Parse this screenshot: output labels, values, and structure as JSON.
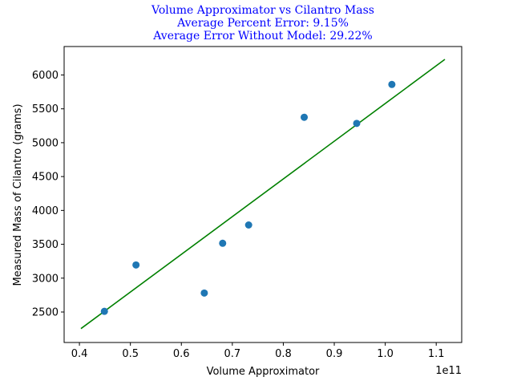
{
  "chart_data": {
    "type": "scatter",
    "title_lines": [
      "Volume Approximator vs Cilantro Mass",
      "Average Percent Error:  9.15%",
      "Average Error Without Model:  29.22%"
    ],
    "xlabel": "Volume Approximator",
    "ylabel": "Measured Mass of Cilantro (grams)",
    "x_offset_label": "1e11",
    "xlim": [
      0.37,
      1.15
    ],
    "ylim": [
      2050,
      6420
    ],
    "x_ticks": [
      0.4,
      0.5,
      0.6,
      0.7,
      0.8,
      0.9,
      1.0,
      1.1
    ],
    "x_tick_labels": [
      "0.4",
      "0.5",
      "0.6",
      "0.7",
      "0.8",
      "0.9",
      "1.0",
      "1.1"
    ],
    "y_ticks": [
      2500,
      3000,
      3500,
      4000,
      4500,
      5000,
      5500,
      6000
    ],
    "y_tick_labels": [
      "2500",
      "3000",
      "3500",
      "4000",
      "4500",
      "5000",
      "5500",
      "6000"
    ],
    "points": [
      {
        "x": 0.449,
        "y": 2510
      },
      {
        "x": 0.511,
        "y": 3195
      },
      {
        "x": 0.645,
        "y": 2780
      },
      {
        "x": 0.681,
        "y": 3515
      },
      {
        "x": 0.732,
        "y": 3785
      },
      {
        "x": 0.841,
        "y": 5375
      },
      {
        "x": 0.944,
        "y": 5285
      },
      {
        "x": 1.013,
        "y": 5860
      }
    ],
    "fit_line": [
      {
        "x": 0.403,
        "y": 2255
      },
      {
        "x": 1.117,
        "y": 6230
      }
    ],
    "grid": false,
    "legend": false,
    "colors": {
      "points": "#1f77b4",
      "fit_line": "#008000",
      "title": "#0000ff"
    }
  }
}
